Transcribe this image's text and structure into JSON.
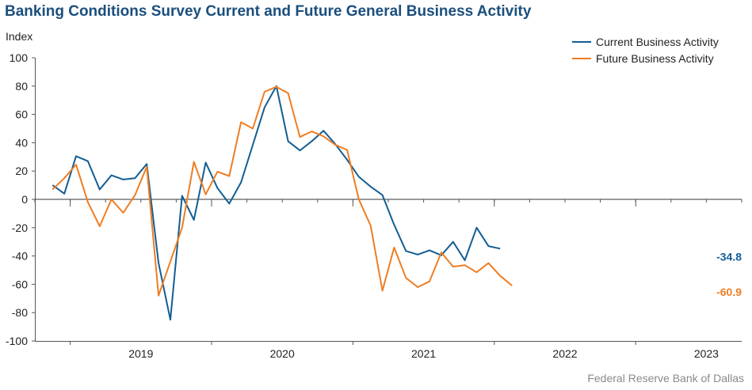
{
  "chart_data": {
    "type": "line",
    "title": "Banking Conditions Survey Current and Future General Business Activity",
    "ylabel": "Index",
    "source": "Federal Reserve Bank of Dallas",
    "ylim": [
      -100,
      100
    ],
    "yticks": [
      100,
      80,
      60,
      40,
      20,
      0,
      -20,
      -40,
      -60,
      -80,
      -100
    ],
    "year_labels": [
      "2019",
      "2020",
      "2021",
      "2022",
      "2023"
    ],
    "x_quarters": [
      "2018Q4",
      "2019Q1",
      "2019Q2",
      "2019Q3",
      "2019Q4",
      "2020Q1",
      "2020Q2",
      "2020Q3",
      "2020Q4",
      "2021Q1",
      "2021Q2",
      "2021Q3",
      "2021Q4",
      "2022Q1",
      "2022Q2",
      "2022Q3",
      "2022Q4",
      "2023Q1",
      "2023Q2",
      "2023Q3"
    ],
    "legend_position": "top-right",
    "series": [
      {
        "name": "Current Business Activity",
        "color": "#125e94",
        "end_label": "-34.8",
        "points": [
          [
            "2018-11",
            10
          ],
          [
            "2018-12",
            4
          ],
          [
            "2019-01",
            30.5
          ],
          [
            "2019-02",
            27
          ],
          [
            "2019-03",
            7
          ],
          [
            "2019-04",
            17
          ],
          [
            "2019-05",
            14
          ],
          [
            "2019-06",
            15
          ],
          [
            "2019-07",
            25
          ],
          [
            "2019-08",
            -45
          ],
          [
            "2019-09",
            -85
          ],
          [
            "2019-10",
            2.5
          ],
          [
            "2019-11",
            -14.5
          ],
          [
            "2019-12",
            26
          ],
          [
            "2020-01",
            8
          ],
          [
            "2020-02",
            -3
          ],
          [
            "2020-03",
            12
          ],
          [
            "2020-05",
            65
          ],
          [
            "2020-06",
            80
          ],
          [
            "2020-07",
            41
          ],
          [
            "2020-08",
            34.5
          ],
          [
            "2020-09",
            41
          ],
          [
            "2020-10",
            48.5
          ],
          [
            "2020-11",
            39
          ],
          [
            "2020-12",
            28
          ],
          [
            "2021-01",
            16
          ],
          [
            "2021-02",
            9
          ],
          [
            "2021-03",
            3
          ],
          [
            "2021-04",
            -18
          ],
          [
            "2021-05",
            -36.5
          ],
          [
            "2021-06",
            -39
          ],
          [
            "2021-07",
            -36
          ],
          [
            "2021-08",
            -39.5
          ],
          [
            "2021-09",
            -30
          ],
          [
            "2021-10",
            -43
          ],
          [
            "2021-11",
            -20
          ],
          [
            "2021-12",
            -33
          ],
          [
            "2022-01",
            -34.8
          ]
        ]
      },
      {
        "name": "Future Business Activity",
        "color": "#ef7d22",
        "end_label": "-60.9",
        "points": [
          [
            "2018-11",
            7
          ],
          [
            "2018-12",
            15
          ],
          [
            "2019-01",
            24.5
          ],
          [
            "2019-02",
            -2
          ],
          [
            "2019-03",
            -19
          ],
          [
            "2019-04",
            0
          ],
          [
            "2019-05",
            -9.5
          ],
          [
            "2019-06",
            3
          ],
          [
            "2019-07",
            23
          ],
          [
            "2019-08",
            -68
          ],
          [
            "2019-10",
            -20
          ],
          [
            "2019-11",
            26.5
          ],
          [
            "2019-12",
            3.5
          ],
          [
            "2020-01",
            19.5
          ],
          [
            "2020-02",
            16.5
          ],
          [
            "2020-03",
            54.5
          ],
          [
            "2020-04",
            50
          ],
          [
            "2020-05",
            76
          ],
          [
            "2020-06",
            79.5
          ],
          [
            "2020-07",
            75
          ],
          [
            "2020-08",
            44
          ],
          [
            "2020-09",
            48
          ],
          [
            "2020-10",
            44.5
          ],
          [
            "2020-11",
            38.5
          ],
          [
            "2020-12",
            35
          ],
          [
            "2021-01",
            0
          ],
          [
            "2021-02",
            -18.5
          ],
          [
            "2021-03",
            -64.5
          ],
          [
            "2021-04",
            -34
          ],
          [
            "2021-05",
            -55.5
          ],
          [
            "2021-06",
            -62
          ],
          [
            "2021-07",
            -58
          ],
          [
            "2021-08",
            -37.5
          ],
          [
            "2021-09",
            -47.5
          ],
          [
            "2021-10",
            -46.5
          ],
          [
            "2021-11",
            -51.5
          ],
          [
            "2021-12",
            -45
          ],
          [
            "2022-01",
            -54
          ],
          [
            "2022-02",
            -60.9
          ]
        ]
      }
    ]
  }
}
